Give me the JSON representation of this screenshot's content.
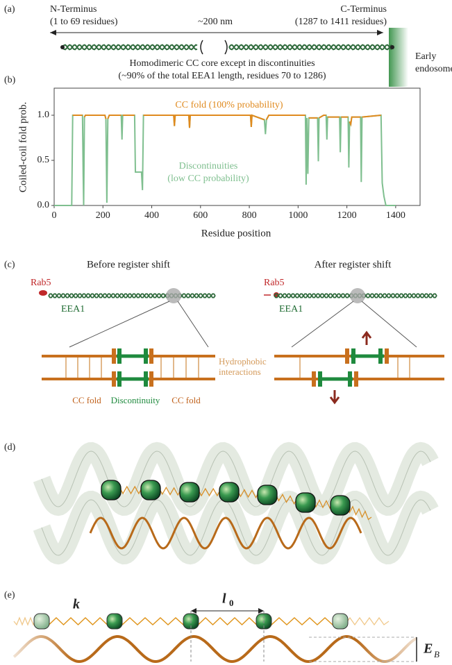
{
  "panel_a": {
    "label": "(a)",
    "n_terminus": "N-Terminus",
    "n_range": "(1 to 69 residues)",
    "length": "~200 nm",
    "c_terminus": "C-Terminus",
    "c_range": "(1287 to 1411 residues)",
    "endosome_1": "Early",
    "endosome_2": "endosome",
    "caption_1": "Homodimeric CC core except in discontinuities",
    "caption_2": "(~90% of the total EEA1 length, residues 70 to 1286)"
  },
  "chart_data": {
    "type": "line",
    "panel_label": "(b)",
    "x_label": "Residue position",
    "y_label": "Coiled-coil fold prob.",
    "annotation_cc": "CC fold (100% probability)",
    "annotation_disc_1": "Discontinuities",
    "annotation_disc_2": "(low CC probability)",
    "x": [
      0,
      72,
      76,
      116,
      119,
      121,
      124,
      128,
      208,
      212,
      216,
      220,
      226,
      275,
      278,
      281,
      330,
      333,
      358,
      362,
      366,
      490,
      493,
      496,
      552,
      555,
      558,
      805,
      808,
      811,
      862,
      866,
      870,
      880,
      1030,
      1033,
      1036,
      1040,
      1044,
      1052,
      1080,
      1083,
      1086,
      1105,
      1115,
      1118,
      1121,
      1170,
      1173,
      1176,
      1205,
      1208,
      1211,
      1216,
      1220,
      1256,
      1259,
      1262,
      1340,
      1345,
      1352,
      1360,
      1400
    ],
    "series": [
      {
        "name": "Discontinuities",
        "color": "#7fbf8f",
        "values": [
          0,
          0,
          1,
          1,
          0.35,
          0,
          0.98,
          1,
          1,
          0.96,
          0.03,
          0.96,
          1,
          1,
          0.73,
          1,
          1,
          0.37,
          0.37,
          0.17,
          1,
          1,
          0.88,
          1,
          1,
          0.86,
          1,
          1,
          0.87,
          1,
          0.95,
          0.79,
          0.95,
          1,
          1,
          0.23,
          0.97,
          0.35,
          0.97,
          0.97,
          0.97,
          0.49,
          0.97,
          1,
          1,
          0.73,
          0.98,
          0.98,
          0.59,
          0.98,
          0.98,
          0.42,
          0.93,
          0.9,
          0.98,
          0.98,
          0.26,
          0.98,
          1,
          0.25,
          0.1,
          0,
          0
        ]
      },
      {
        "name": "CC fold",
        "color": "#e08a1e",
        "values": [
          null,
          null,
          1,
          1,
          null,
          null,
          0.98,
          1,
          1,
          0.96,
          null,
          0.96,
          1,
          1,
          null,
          1,
          1,
          null,
          null,
          null,
          1,
          1,
          0.88,
          1,
          1,
          0.86,
          1,
          1,
          0.87,
          1,
          0.95,
          null,
          0.95,
          1,
          1,
          null,
          0.97,
          null,
          0.97,
          0.97,
          0.97,
          null,
          0.97,
          1,
          1,
          null,
          0.98,
          0.98,
          null,
          0.98,
          0.98,
          null,
          0.93,
          0.9,
          0.98,
          0.98,
          null,
          0.98,
          1,
          null,
          null,
          null,
          null
        ]
      }
    ],
    "xlim": [
      0,
      1500
    ],
    "xticks": [
      0,
      200,
      400,
      600,
      800,
      1000,
      1200,
      1400
    ],
    "ylim": [
      0,
      1.3
    ],
    "yticks": [
      {
        "value": 0,
        "label": "0.0"
      },
      0.5,
      {
        "value": 1,
        "label": "1.0"
      }
    ]
  },
  "panel_c": {
    "label": "(c)",
    "before": "Before register shift",
    "after": "After register shift",
    "rab5_left": "Rab5",
    "rab5_right": "Rab5",
    "eea1_left": "EEA1",
    "eea1_right": "EEA1",
    "hydro_1": "Hydrophobic",
    "hydro_2": "interactions",
    "cc_fold_left": "CC fold",
    "discontinuity": "Discontinuity",
    "cc_fold_right": "CC fold"
  },
  "panel_d": {
    "label": "(d)"
  },
  "panel_e": {
    "label": "(e)",
    "spring_constant": "k",
    "length_symbol": "l",
    "length_subscript": "0",
    "energy_symbol": "E",
    "energy_subscript": "B"
  }
}
